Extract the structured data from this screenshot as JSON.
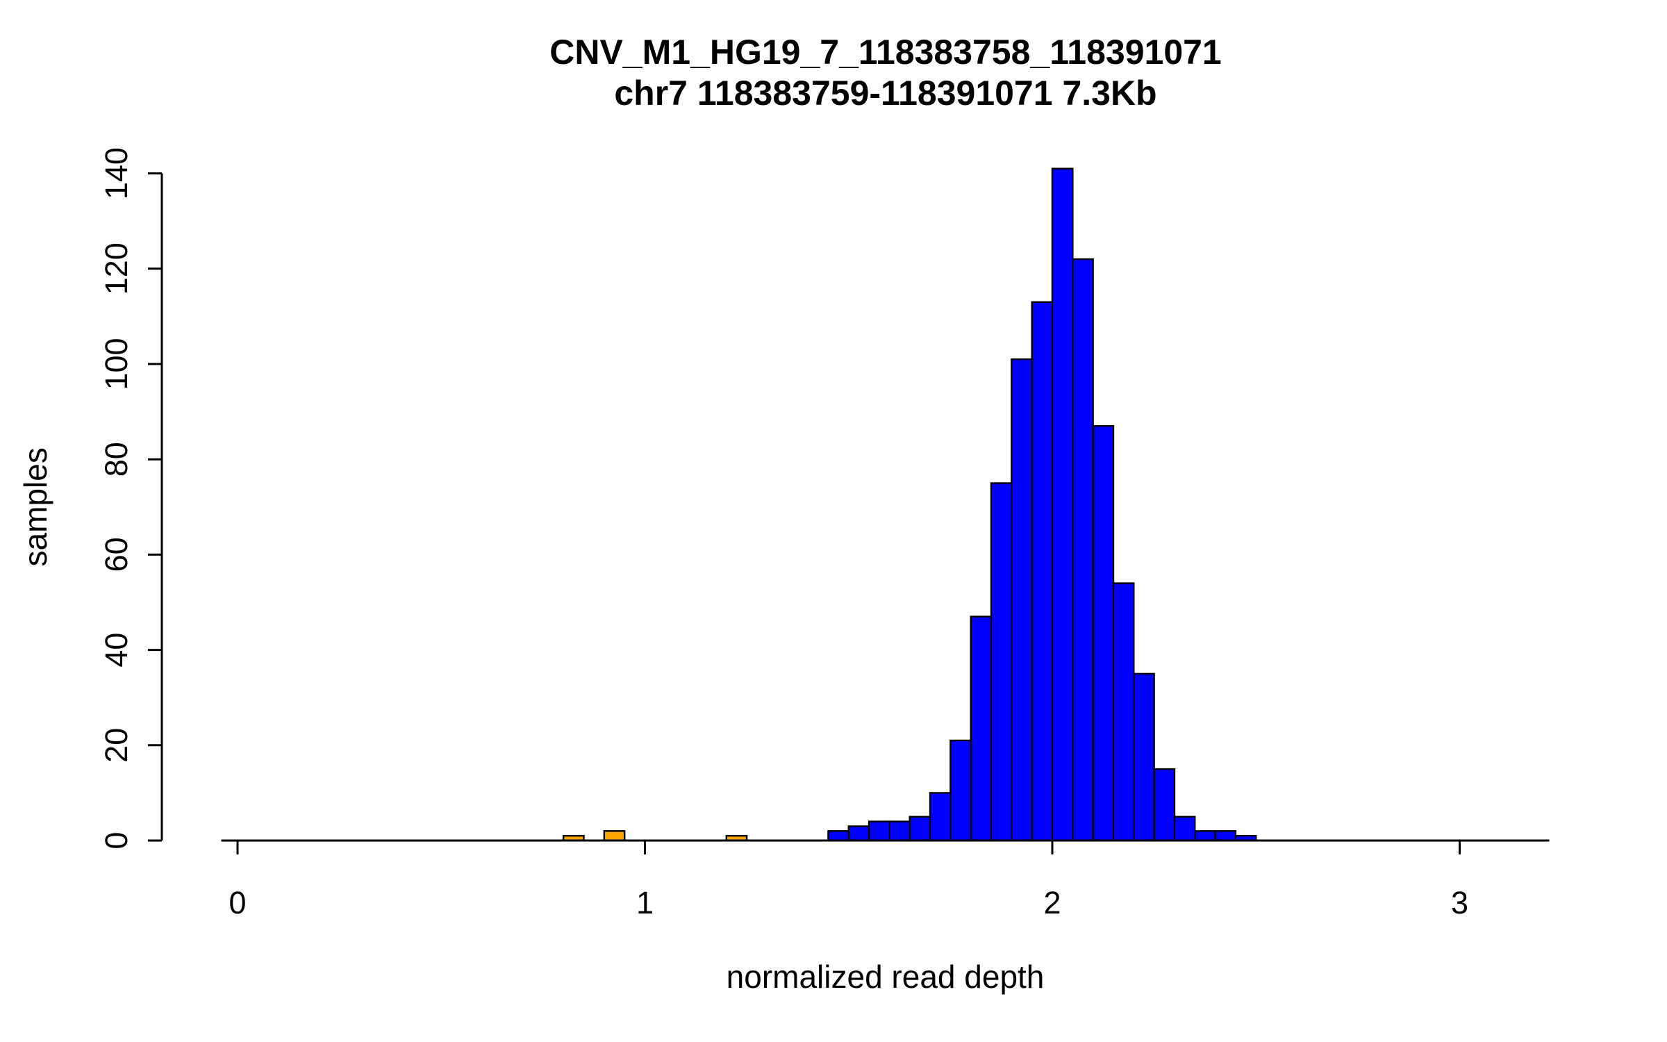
{
  "chart": {
    "title": "CNV_M1_HG19_7_118383758_118391071",
    "subtitle": "chr7 118383759-118391071 7.3Kb"
  },
  "chart_data": {
    "type": "bar",
    "subtype": "histogram",
    "title": "CNV_M1_HG19_7_118383758_118391071",
    "subtitle": "chr7 118383759-118391071 7.3Kb",
    "xlabel": "normalized read depth",
    "ylabel": "samples",
    "xlim": [
      -0.04,
      3.22
    ],
    "ylim": [
      0,
      140
    ],
    "x_ticks": [
      0,
      1,
      2,
      3
    ],
    "y_ticks": [
      0,
      20,
      40,
      60,
      80,
      100,
      120,
      140
    ],
    "grid": false,
    "legend": false,
    "bin_width": 0.05,
    "colors": {
      "normal": "#0000FF",
      "outlier": "#FFA500",
      "stroke": "#000000",
      "axis": "#000000",
      "text": "#000000"
    },
    "bars": [
      {
        "x0": 0.8,
        "count": 1,
        "color": "outlier"
      },
      {
        "x0": 0.9,
        "count": 2,
        "color": "outlier"
      },
      {
        "x0": 1.2,
        "count": 1,
        "color": "outlier"
      },
      {
        "x0": 1.45,
        "count": 2,
        "color": "normal"
      },
      {
        "x0": 1.5,
        "count": 3,
        "color": "normal"
      },
      {
        "x0": 1.55,
        "count": 4,
        "color": "normal"
      },
      {
        "x0": 1.6,
        "count": 4,
        "color": "normal"
      },
      {
        "x0": 1.65,
        "count": 5,
        "color": "normal"
      },
      {
        "x0": 1.7,
        "count": 10,
        "color": "normal"
      },
      {
        "x0": 1.75,
        "count": 21,
        "color": "normal"
      },
      {
        "x0": 1.8,
        "count": 47,
        "color": "normal"
      },
      {
        "x0": 1.85,
        "count": 75,
        "color": "normal"
      },
      {
        "x0": 1.9,
        "count": 101,
        "color": "normal"
      },
      {
        "x0": 1.95,
        "count": 113,
        "color": "normal"
      },
      {
        "x0": 2.0,
        "count": 141,
        "color": "normal"
      },
      {
        "x0": 2.05,
        "count": 122,
        "color": "normal"
      },
      {
        "x0": 2.1,
        "count": 87,
        "color": "normal"
      },
      {
        "x0": 2.15,
        "count": 54,
        "color": "normal"
      },
      {
        "x0": 2.2,
        "count": 35,
        "color": "normal"
      },
      {
        "x0": 2.25,
        "count": 15,
        "color": "normal"
      },
      {
        "x0": 2.3,
        "count": 5,
        "color": "normal"
      },
      {
        "x0": 2.35,
        "count": 2,
        "color": "normal"
      },
      {
        "x0": 2.4,
        "count": 2,
        "color": "normal"
      },
      {
        "x0": 2.45,
        "count": 1,
        "color": "normal"
      }
    ]
  }
}
